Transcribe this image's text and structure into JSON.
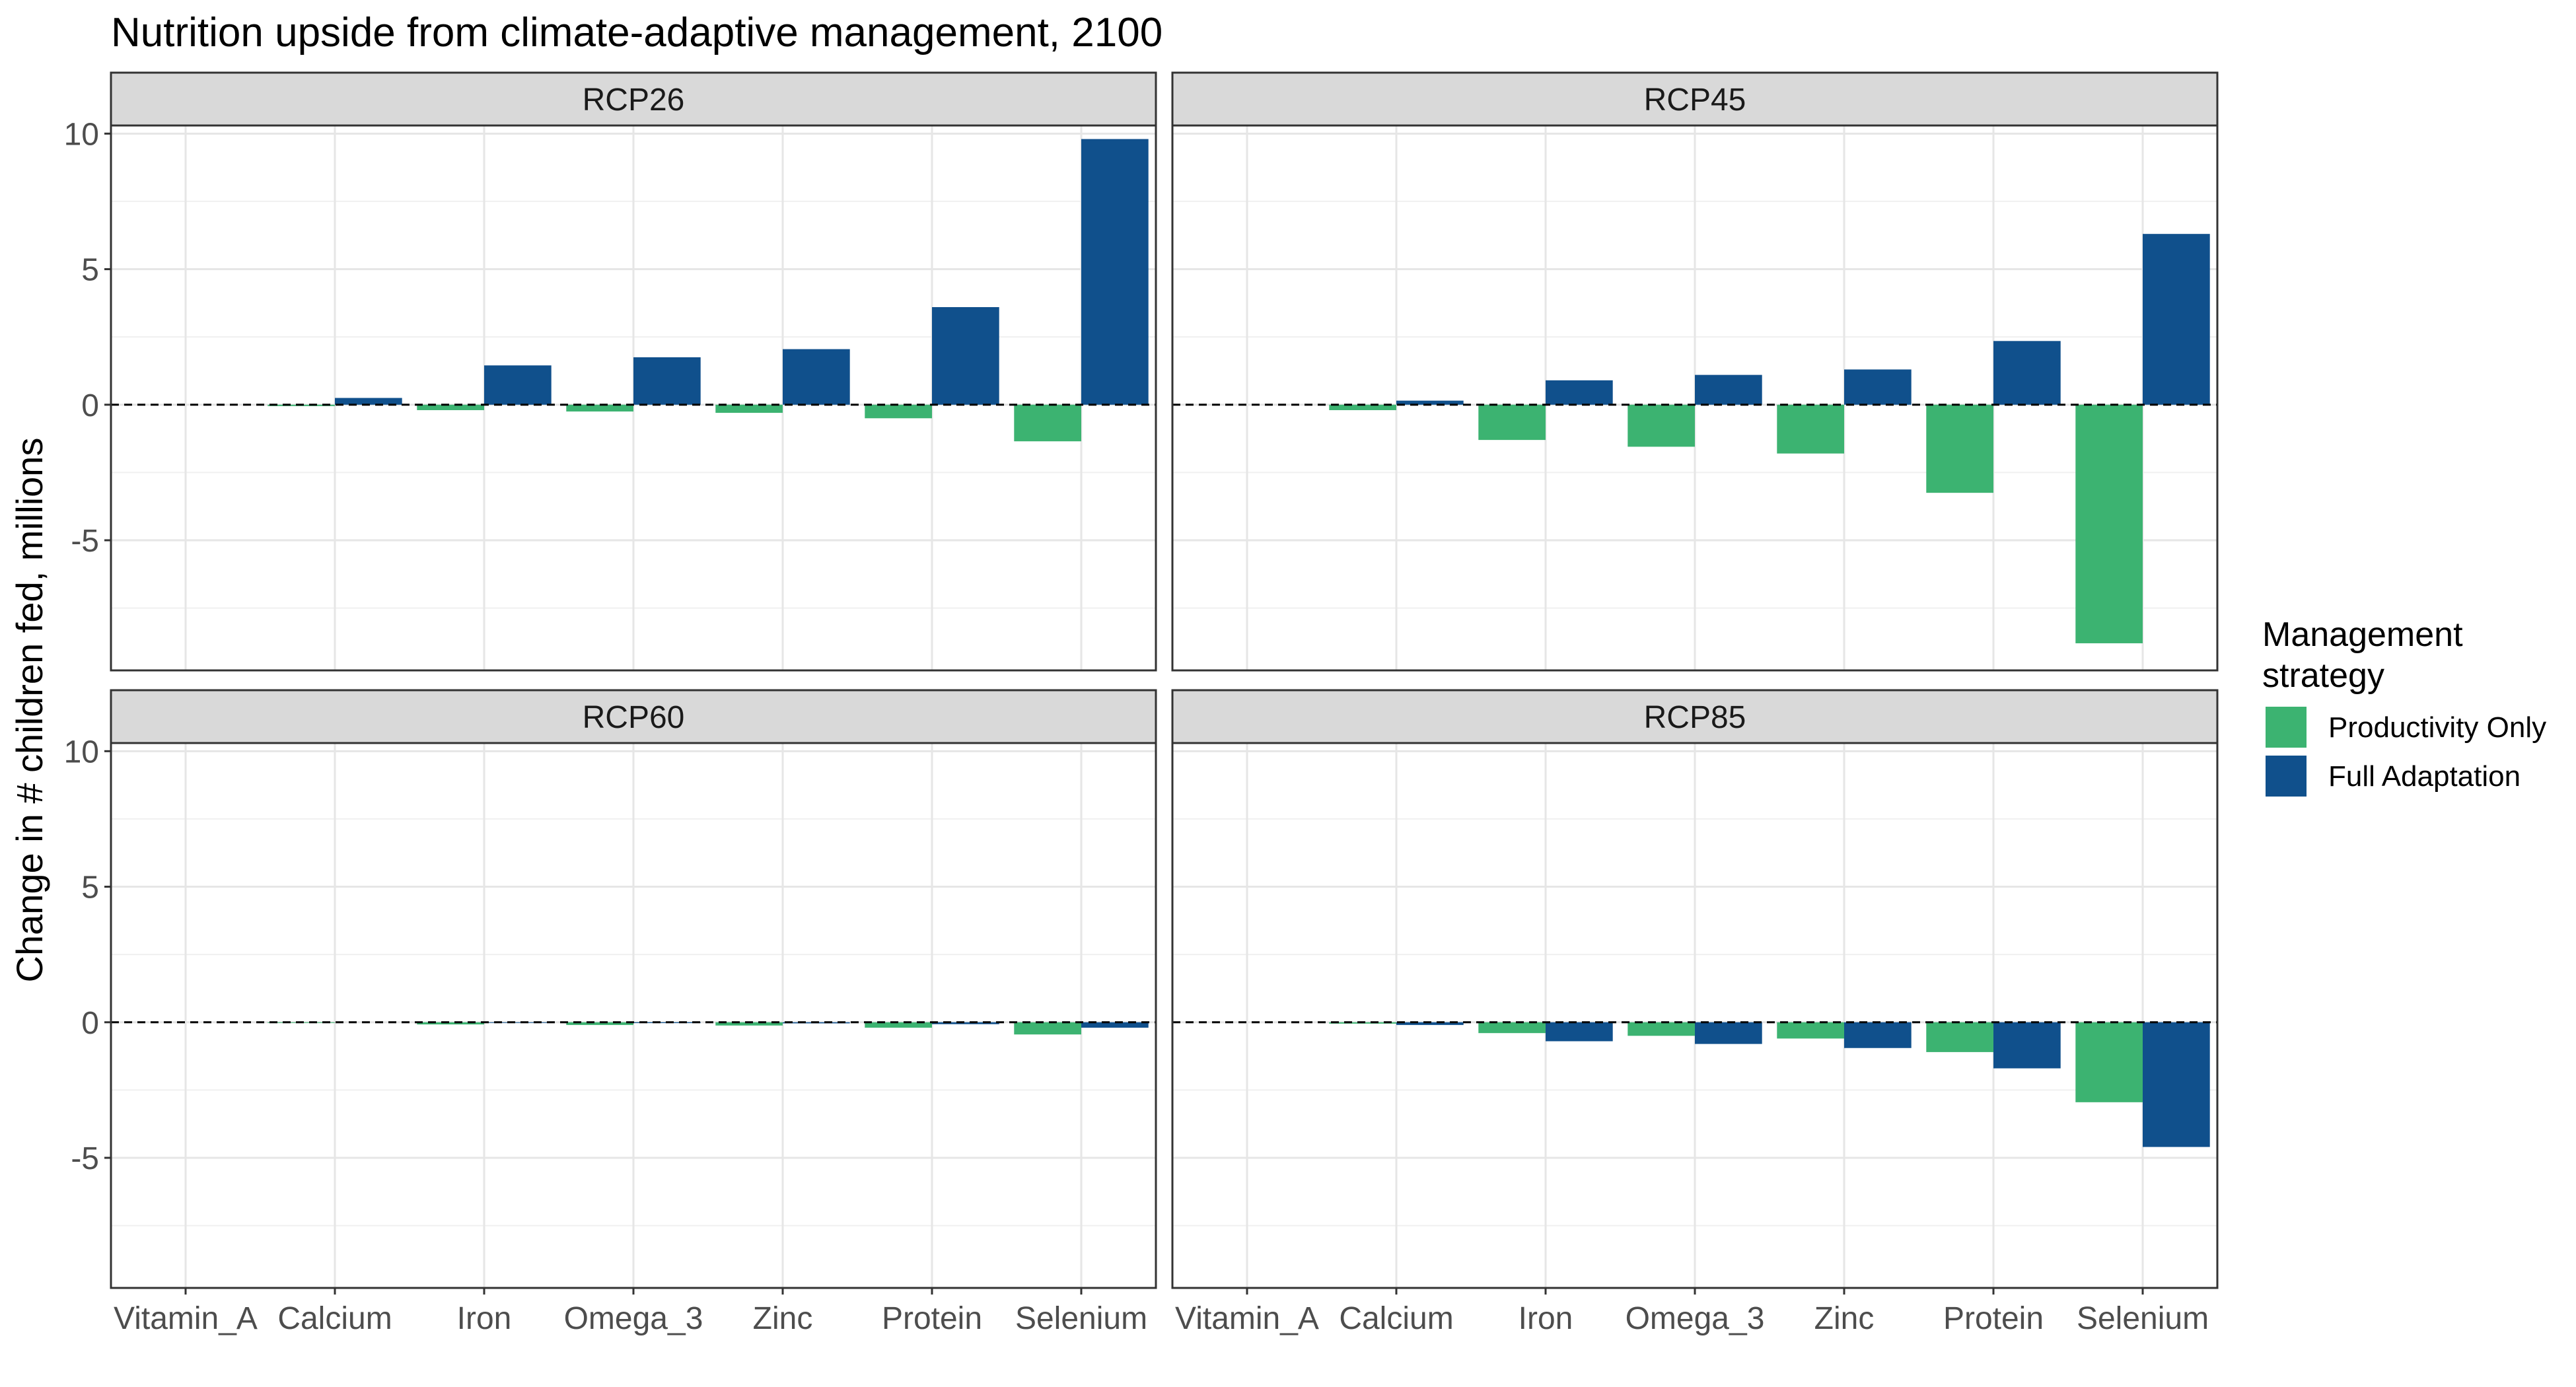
{
  "chart_data": {
    "type": "bar",
    "title": "Nutrition upside from climate-adaptive management, 2100",
    "xlabel": "",
    "ylabel": "Change in # children fed, millions",
    "ylim": [
      -9.8,
      10.3
    ],
    "y_ticks": [
      -5,
      0,
      5,
      10
    ],
    "y_tick_labels": [
      "-5",
      "0",
      "5",
      "10"
    ],
    "grid": true,
    "reference_line": {
      "y": 0,
      "style": "dashed"
    },
    "categories": [
      "Vitamin_A",
      "Calcium",
      "Iron",
      "Omega_3",
      "Zinc",
      "Protein",
      "Selenium"
    ],
    "legend": {
      "title": "Management strategy",
      "placement": "right",
      "entries": [
        "Productivity Only",
        "Full Adaptation"
      ]
    },
    "colors": {
      "Productivity Only": "#3cb371",
      "Full Adaptation": "#10508c"
    },
    "panels": [
      {
        "label": "RCP26",
        "series": [
          {
            "name": "Productivity Only",
            "values": [
              0,
              -0.05,
              -0.2,
              -0.25,
              -0.3,
              -0.5,
              -1.35
            ]
          },
          {
            "name": "Full Adaptation",
            "values": [
              0,
              0.25,
              1.45,
              1.75,
              2.05,
              3.6,
              9.8
            ]
          }
        ]
      },
      {
        "label": "RCP45",
        "series": [
          {
            "name": "Productivity Only",
            "values": [
              0,
              -0.2,
              -1.3,
              -1.55,
              -1.8,
              -3.25,
              -8.8
            ]
          },
          {
            "name": "Full Adaptation",
            "values": [
              0,
              0.15,
              0.9,
              1.1,
              1.3,
              2.35,
              6.3
            ]
          }
        ]
      },
      {
        "label": "RCP60",
        "series": [
          {
            "name": "Productivity Only",
            "values": [
              0,
              -0.02,
              -0.08,
              -0.1,
              -0.12,
              -0.2,
              -0.45
            ]
          },
          {
            "name": "Full Adaptation",
            "values": [
              0,
              0,
              -0.02,
              -0.03,
              -0.04,
              -0.07,
              -0.2
            ]
          }
        ]
      },
      {
        "label": "RCP85",
        "series": [
          {
            "name": "Productivity Only",
            "values": [
              0,
              -0.05,
              -0.4,
              -0.5,
              -0.6,
              -1.1,
              -2.95
            ]
          },
          {
            "name": "Full Adaptation",
            "values": [
              0,
              -0.1,
              -0.7,
              -0.8,
              -0.95,
              -1.7,
              -4.6
            ]
          }
        ]
      }
    ]
  }
}
